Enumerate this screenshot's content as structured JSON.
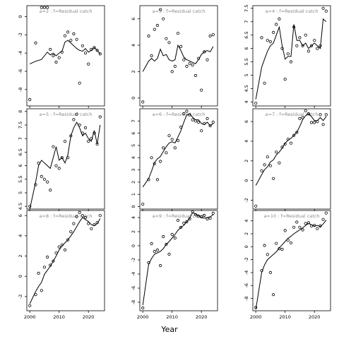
{
  "chart_data": {
    "type": "scatter",
    "xlabel": "Year",
    "x_ticks": [
      2000,
      2010,
      2020
    ],
    "xlim": [
      1999,
      2025.5
    ],
    "grid": false,
    "panels": [
      {
        "label": "a=2  :  f=Residual catch",
        "ylim": [
          -9.8,
          1.2
        ],
        "yticks": [
          0,
          -2,
          -4,
          -6,
          -8
        ],
        "x": [
          2000,
          2002,
          2004,
          2005,
          2006,
          2007,
          2008,
          2009,
          2010,
          2011,
          2012,
          2013,
          2014,
          2015,
          2016,
          2017,
          2018,
          2019,
          2020,
          2021,
          2022,
          2023,
          2024
        ],
        "points": [
          -9.1,
          -2.9,
          1,
          1,
          1,
          -3.6,
          -4.3,
          -5,
          -4.5,
          -3.9,
          -2.1,
          -1.7,
          -2.6,
          -1.9,
          -2.5,
          -7.3,
          -3.2,
          -4,
          -5.2,
          -3.6,
          -3.4,
          -3.7,
          -4.1
        ],
        "fitted": [
          -5.2,
          -4.9,
          -4.7,
          -4.3,
          -3.9,
          -4.2,
          -4.0,
          -4.3,
          -4.0,
          -3.8,
          -2.8,
          -2.6,
          -2.9,
          -3.2,
          -3.5,
          -3.7,
          -3.8,
          -3.5,
          -3.9,
          -3.7,
          -3.4,
          -3.7,
          -4.1
        ]
      },
      {
        "label": "a=5  :  f=Residual catch",
        "ylim": [
          4.4,
          8.1
        ],
        "yticks": [
          4.5,
          5,
          5.5,
          6,
          6.5,
          7,
          7.5,
          8
        ],
        "x": [
          2000,
          2002,
          2003,
          2004,
          2005,
          2006,
          2007,
          2008,
          2009,
          2010,
          2011,
          2012,
          2013,
          2014,
          2015,
          2016,
          2017,
          2018,
          2019,
          2020,
          2021,
          2022,
          2023,
          2024
        ],
        "points": [
          4.5,
          5.3,
          6.1,
          5.6,
          5.5,
          5.4,
          5.1,
          6.7,
          6.0,
          5.9,
          6.3,
          6.9,
          6.3,
          7.1,
          7.7,
          7.9,
          7.5,
          7.2,
          7.4,
          6.9,
          7.0,
          7.2,
          6.8,
          7.8
        ],
        "fitted": [
          4.4,
          5.4,
          6.0,
          6.2,
          6.1,
          6.0,
          5.9,
          6.3,
          6.7,
          6.2,
          6.3,
          6.1,
          6.4,
          7.1,
          7.4,
          7.6,
          7.4,
          7.1,
          7.2,
          7.0,
          6.9,
          7.3,
          6.8,
          7.5
        ]
      },
      {
        "label": "a=8  :  f=Residual catch",
        "ylim": [
          -3.4,
          6.5
        ],
        "yticks": [
          -2,
          0,
          2,
          4,
          6
        ],
        "x": [
          2000,
          2002,
          2003,
          2004,
          2005,
          2006,
          2007,
          2008,
          2009,
          2010,
          2011,
          2012,
          2013,
          2014,
          2015,
          2016,
          2017,
          2018,
          2019,
          2020,
          2021,
          2022,
          2023,
          2024
        ],
        "points": [
          -2.9,
          -1.8,
          0.3,
          -1.4,
          0.9,
          1.9,
          1.1,
          1.5,
          2.3,
          2.9,
          3.1,
          2.6,
          3.6,
          4.4,
          5.2,
          5.9,
          6.3,
          6.0,
          5.8,
          5.2,
          4.7,
          5.1,
          5.3,
          6.0
        ],
        "fitted": [
          -2.7,
          -1.5,
          -1.0,
          -0.6,
          0.2,
          0.6,
          1.0,
          1.5,
          2.0,
          2.6,
          3.0,
          3.3,
          3.6,
          4.0,
          4.4,
          4.9,
          5.4,
          5.8,
          5.6,
          5.4,
          5.1,
          5.0,
          5.2,
          5.7
        ]
      },
      {
        "label": "a=3  :  f=Residual catch",
        "ylim": [
          -0.6,
          7.0
        ],
        "yticks": [
          0,
          2,
          4,
          6
        ],
        "x": [
          2000,
          2002,
          2003,
          2004,
          2005,
          2006,
          2007,
          2008,
          2009,
          2010,
          2011,
          2012,
          2013,
          2014,
          2015,
          2016,
          2017,
          2018,
          2019,
          2020,
          2021,
          2022,
          2023,
          2024
        ],
        "points": [
          -0.3,
          4.7,
          3.2,
          5.2,
          5.5,
          6.7,
          6.0,
          4.5,
          4.2,
          2.0,
          2.4,
          4.9,
          3.9,
          2.9,
          2.4,
          2.6,
          2.5,
          1.7,
          3.0,
          0.6,
          3.5,
          2.9,
          4.7,
          4.8
        ],
        "fitted": [
          2.0,
          2.8,
          3.0,
          2.8,
          3.0,
          3.7,
          3.2,
          3.3,
          2.9,
          2.8,
          2.9,
          4.0,
          3.6,
          3.1,
          2.9,
          2.8,
          2.7,
          2.6,
          2.9,
          3.3,
          3.5,
          3.6,
          3.5,
          3.9
        ]
      },
      {
        "label": "a=6  :  f=Residual catch",
        "ylim": [
          -0.2,
          8.0
        ],
        "yticks": [
          0,
          1,
          2,
          3,
          4,
          5,
          6,
          7
        ],
        "x": [
          2000,
          2002,
          2003,
          2004,
          2005,
          2006,
          2007,
          2008,
          2009,
          2010,
          2011,
          2012,
          2013,
          2014,
          2015,
          2016,
          2017,
          2018,
          2019,
          2020,
          2021,
          2022,
          2023,
          2024
        ],
        "points": [
          0.2,
          2.2,
          4.0,
          3.5,
          2.2,
          3.7,
          4.8,
          4.4,
          5.8,
          5.5,
          4.8,
          5.4,
          6.5,
          7.6,
          7.8,
          7.5,
          7.1,
          7.0,
          6.9,
          6.2,
          6.8,
          7.2,
          6.6,
          6.9
        ],
        "fitted": [
          1.6,
          2.3,
          2.9,
          3.6,
          3.9,
          4.1,
          4.5,
          4.9,
          5.2,
          5.3,
          5.2,
          5.7,
          6.2,
          6.9,
          7.5,
          7.6,
          7.3,
          7.1,
          7.1,
          6.8,
          6.7,
          6.9,
          6.6,
          6.8
        ]
      },
      {
        "label": "a=9  :  f=Residual catch",
        "ylim": [
          -9.2,
          5.0
        ],
        "yticks": [
          -8,
          -6,
          -4,
          -2,
          0,
          2,
          4
        ],
        "x": [
          2000,
          2002,
          2003,
          2004,
          2005,
          2006,
          2007,
          2008,
          2009,
          2010,
          2011,
          2012,
          2013,
          2014,
          2015,
          2016,
          2017,
          2018,
          2019,
          2020,
          2021,
          2022,
          2023,
          2024
        ],
        "points": [
          -8.8,
          -2.4,
          0.3,
          -0.8,
          -0.6,
          -2.8,
          1.3,
          0.2,
          -1.2,
          1.6,
          1.1,
          3.6,
          2.6,
          3.2,
          3.4,
          3.8,
          4.8,
          4.4,
          4.2,
          4.1,
          4.3,
          3.8,
          3.9,
          4.6
        ],
        "fitted": [
          -8.4,
          -2.6,
          -1.8,
          -1.2,
          -1.0,
          -0.8,
          -0.4,
          0.2,
          0.6,
          1.1,
          1.6,
          2.2,
          2.6,
          2.9,
          3.4,
          3.9,
          4.7,
          4.5,
          4.3,
          4.0,
          3.9,
          4.0,
          4.1,
          4.4
        ]
      },
      {
        "label": "a=4  :  f=Residual catch",
        "ylim": [
          3.85,
          7.6
        ],
        "yticks": [
          4,
          4.5,
          5,
          5.5,
          6,
          6.5,
          7,
          7.5
        ],
        "x": [
          2000,
          2002,
          2003,
          2004,
          2005,
          2006,
          2007,
          2008,
          2009,
          2010,
          2011,
          2012,
          2013,
          2014,
          2015,
          2016,
          2017,
          2018,
          2019,
          2020,
          2021,
          2022,
          2023,
          2024
        ],
        "points": [
          3.95,
          6.4,
          4.7,
          6.3,
          6.25,
          6.6,
          6.9,
          7.1,
          6.0,
          4.85,
          5.8,
          5.5,
          6.8,
          6.1,
          6.4,
          6.1,
          6.5,
          5.9,
          6.1,
          6.3,
          6.0,
          6.1,
          7.5,
          7.4
        ],
        "fitted": [
          4.1,
          5.3,
          5.6,
          5.9,
          6.1,
          6.2,
          6.5,
          6.8,
          6.1,
          5.6,
          5.7,
          5.7,
          6.9,
          6.3,
          6.3,
          6.1,
          6.2,
          6.0,
          6.1,
          6.2,
          6.1,
          6.0,
          7.1,
          7.0
        ]
      },
      {
        "label": "a=7  :  f=Residual catch",
        "ylim": [
          -2.9,
          7.3
        ],
        "yticks": [
          -2,
          0,
          2,
          4,
          6
        ],
        "x": [
          2000,
          2002,
          2003,
          2004,
          2005,
          2006,
          2007,
          2008,
          2009,
          2010,
          2011,
          2012,
          2013,
          2014,
          2015,
          2016,
          2017,
          2018,
          2019,
          2020,
          2021,
          2022,
          2023,
          2024
        ],
        "points": [
          -2.6,
          1.0,
          1.6,
          2.4,
          1.5,
          0.2,
          2.9,
          1.8,
          3.4,
          3.7,
          4.2,
          3.8,
          4.6,
          4.9,
          6.3,
          6.4,
          7.1,
          6.8,
          5.9,
          5.9,
          6.0,
          6.7,
          5.7,
          6.7
        ],
        "fitted": [
          -0.5,
          0.6,
          1.1,
          1.4,
          1.9,
          2.1,
          2.6,
          2.9,
          3.3,
          3.8,
          4.1,
          4.3,
          4.6,
          4.9,
          5.5,
          6.2,
          6.6,
          6.8,
          6.5,
          6.1,
          6.1,
          6.4,
          6.1,
          6.5
        ]
      },
      {
        "label": "a=10  :  f=Residual catch",
        "ylim": [
          -9.9,
          5.6
        ],
        "yticks": [
          -8,
          -6,
          -4,
          -2,
          0,
          2,
          4
        ],
        "x": [
          2000,
          2002,
          2003,
          2004,
          2005,
          2006,
          2007,
          2008,
          2009,
          2010,
          2011,
          2012,
          2013,
          2014,
          2015,
          2016,
          2017,
          2018,
          2019,
          2020,
          2021,
          2022,
          2023,
          2024
        ],
        "points": [
          -9.4,
          -3.7,
          0.2,
          -1.2,
          -4.0,
          -7.4,
          0.5,
          -0.3,
          -0.4,
          2.5,
          1.0,
          0.6,
          3.0,
          3.8,
          3.0,
          2.6,
          3.6,
          3.7,
          3.2,
          3.3,
          2.8,
          3.2,
          4.2,
          5.2
        ],
        "fitted": [
          -9.7,
          -4.0,
          -2.8,
          -2.0,
          -1.6,
          -1.2,
          -0.8,
          -0.2,
          0.3,
          0.8,
          1.3,
          1.6,
          2.0,
          2.3,
          2.6,
          2.9,
          3.3,
          3.6,
          3.4,
          3.2,
          3.3,
          3.1,
          3.5,
          4.1
        ]
      }
    ]
  }
}
